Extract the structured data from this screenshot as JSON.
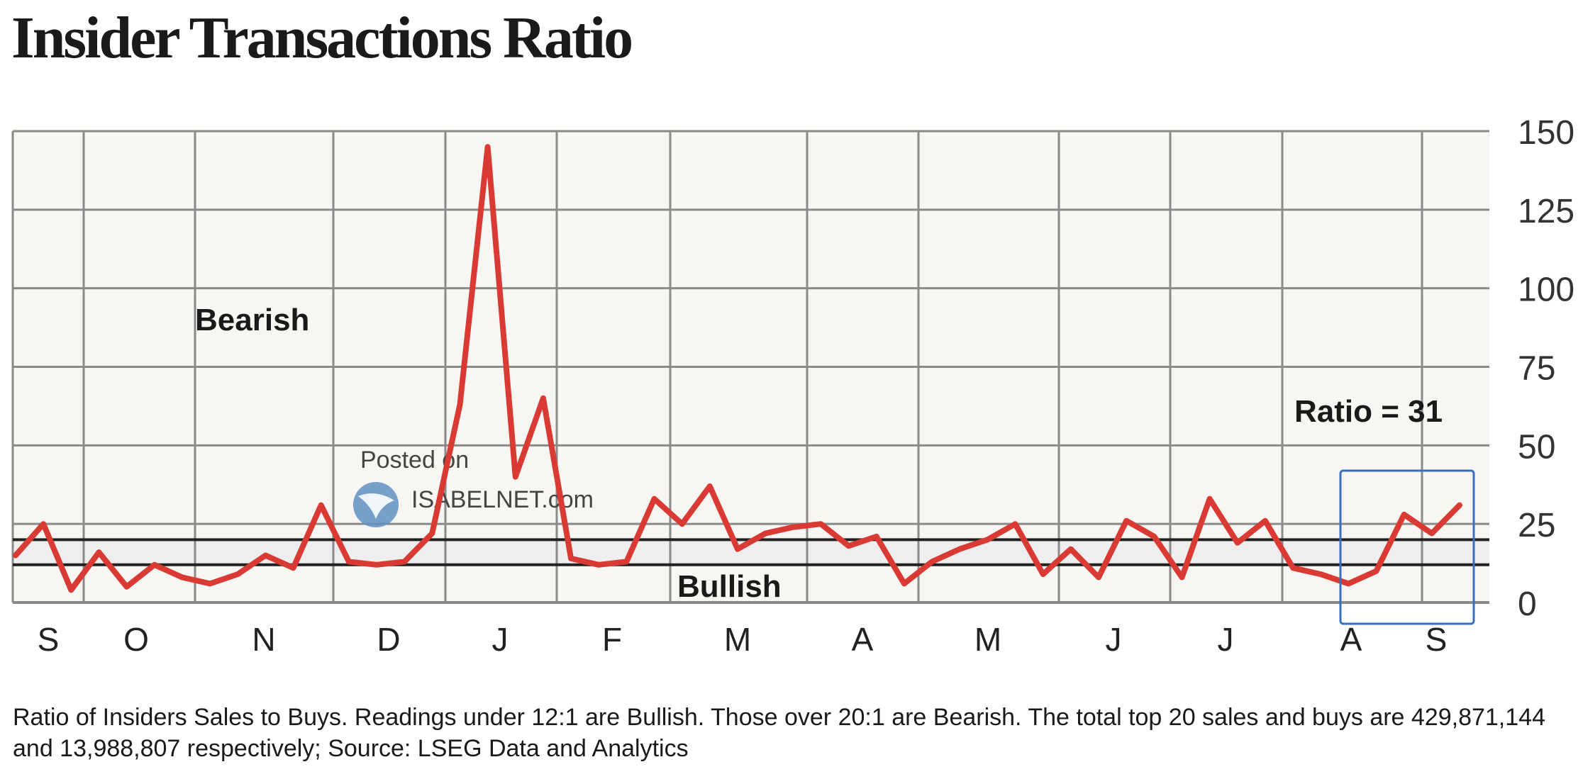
{
  "page": {
    "title": "Insider Transactions Ratio",
    "caption": "Ratio of Insiders Sales to Buys. Readings under 12:1 are Bullish. Those over 20:1 are Bearish. The total top 20 sales and buys are 429,871,144 and 13,988,807 respectively; Source: LSEG Data and Analytics",
    "watermark": {
      "line1": "Posted on",
      "line2": "ISABELNET.com"
    }
  },
  "colors": {
    "line": "#d93a33",
    "grid": "#8a8a8a",
    "band": "#eeeeee",
    "threshold": "#222222",
    "highlight": "#3a6fbf",
    "plot_bg": "#f7f6f2"
  },
  "chart_data": {
    "type": "line",
    "title": "Insider Transactions Ratio",
    "y_axis": {
      "ylim": [
        0,
        150
      ],
      "ticks": [
        0,
        25,
        50,
        75,
        100,
        125,
        150
      ],
      "position": "right"
    },
    "x_axis": {
      "month_labels": [
        "S",
        "O",
        "N",
        "D",
        "J",
        "F",
        "M",
        "A",
        "M",
        "J",
        "J",
        "A",
        "S"
      ]
    },
    "grid": true,
    "thresholds": {
      "bullish_below": 12,
      "bearish_above": 20
    },
    "annotations": [
      {
        "text": "Bearish"
      },
      {
        "text": "Bullish"
      },
      {
        "text": "Ratio = 31"
      }
    ],
    "highlight_box": {
      "from_month": "A",
      "to_month": "S"
    },
    "series": [
      {
        "values": [
          15,
          25,
          4,
          16,
          5,
          12,
          8,
          6,
          9,
          15,
          11,
          31,
          13,
          12,
          13,
          22,
          63,
          145,
          40,
          65,
          14,
          12,
          13,
          33,
          25,
          37,
          17,
          22,
          24,
          25,
          18,
          21,
          6,
          13,
          17,
          20,
          25,
          9,
          17,
          8,
          26,
          21,
          8,
          33,
          19,
          26,
          11,
          9,
          6,
          10,
          28,
          22,
          31
        ]
      }
    ]
  }
}
